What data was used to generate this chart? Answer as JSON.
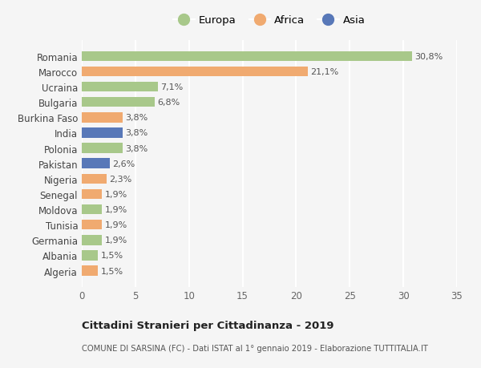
{
  "countries": [
    "Algeria",
    "Albania",
    "Germania",
    "Tunisia",
    "Moldova",
    "Senegal",
    "Nigeria",
    "Pakistan",
    "Polonia",
    "India",
    "Burkina Faso",
    "Bulgaria",
    "Ucraina",
    "Marocco",
    "Romania"
  ],
  "values": [
    1.5,
    1.5,
    1.9,
    1.9,
    1.9,
    1.9,
    2.3,
    2.6,
    3.8,
    3.8,
    3.8,
    6.8,
    7.1,
    21.1,
    30.8
  ],
  "labels": [
    "1,5%",
    "1,5%",
    "1,9%",
    "1,9%",
    "1,9%",
    "1,9%",
    "2,3%",
    "2,6%",
    "3,8%",
    "3,8%",
    "3,8%",
    "6,8%",
    "7,1%",
    "21,1%",
    "30,8%"
  ],
  "continents": [
    "Africa",
    "Europa",
    "Europa",
    "Africa",
    "Europa",
    "Africa",
    "Africa",
    "Asia",
    "Europa",
    "Asia",
    "Africa",
    "Europa",
    "Europa",
    "Africa",
    "Europa"
  ],
  "continent_colors": {
    "Europa": "#a8c88a",
    "Africa": "#f0aa70",
    "Asia": "#5878b8"
  },
  "legend_entries": [
    "Europa",
    "Africa",
    "Asia"
  ],
  "title": "Cittadini Stranieri per Cittadinanza - 2019",
  "subtitle": "COMUNE DI SARSINA (FC) - Dati ISTAT al 1° gennaio 2019 - Elaborazione TUTTITALIA.IT",
  "xlim": [
    0,
    35
  ],
  "xticks": [
    0,
    5,
    10,
    15,
    20,
    25,
    30,
    35
  ],
  "background_color": "#f5f5f5",
  "grid_color": "#ffffff",
  "bar_height": 0.65,
  "label_fontsize": 8,
  "ytick_fontsize": 8.5,
  "xtick_fontsize": 8.5
}
